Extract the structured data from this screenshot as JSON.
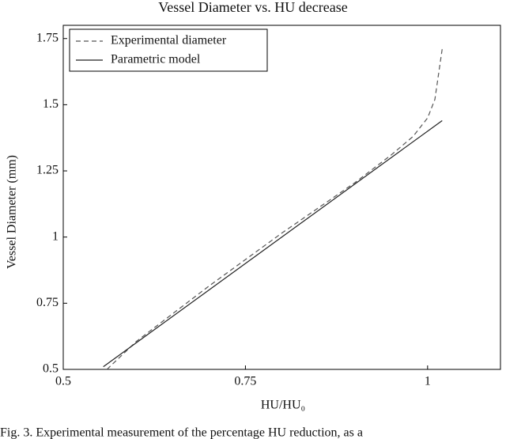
{
  "chart_data": {
    "type": "line",
    "title": "Vessel Diameter vs. HU decrease",
    "xlabel": "HU/HU₀",
    "ylabel": "Vessel Diameter (mm)",
    "xlim": [
      0.5,
      1.1
    ],
    "xticks": [
      0.5,
      0.75,
      1
    ],
    "ylim": [
      0.5,
      1.8
    ],
    "yticks": [
      0.5,
      0.75,
      1,
      1.25,
      1.5,
      1.75
    ],
    "legend": "upper left",
    "series": [
      {
        "name": "Experimental diameter",
        "color": "#555555",
        "dashed": true,
        "x": [
          0.56,
          0.6,
          0.65,
          0.7,
          0.75,
          0.8,
          0.85,
          0.9,
          0.95,
          0.98,
          1.0,
          1.01,
          1.02
        ],
        "values": [
          0.5,
          0.605,
          0.71,
          0.815,
          0.915,
          1.015,
          1.11,
          1.205,
          1.31,
          1.38,
          1.45,
          1.52,
          1.71
        ]
      },
      {
        "name": "Parametric model",
        "color": "#222222",
        "dashed": false,
        "x": [
          0.555,
          1.02
        ],
        "values": [
          0.51,
          1.44
        ]
      }
    ]
  },
  "caption": "Fig. 3. Experimental measurement of the percentage HU reduction, as a"
}
